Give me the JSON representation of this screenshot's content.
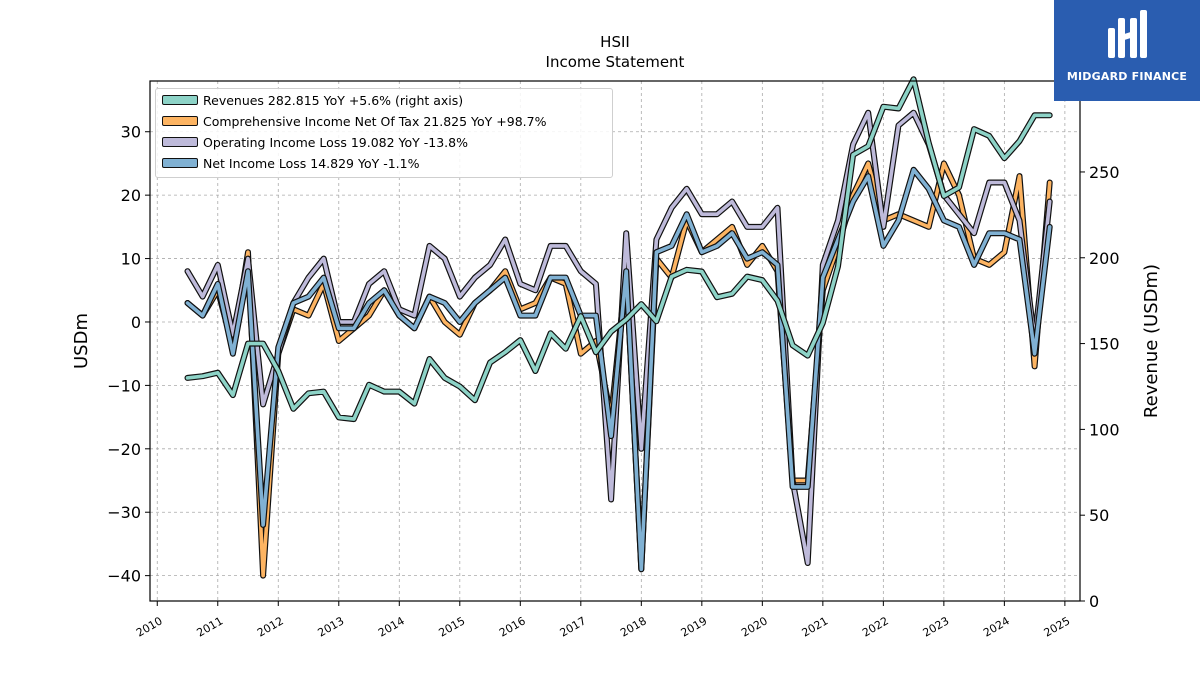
{
  "header": {
    "ticker": "HSII",
    "subtitle": "Income Statement"
  },
  "logo": {
    "text": "MIDGARD FINANCE",
    "color": "#2a5db0"
  },
  "chart_data": {
    "type": "line",
    "title": "HSII",
    "subtitle": "Income Statement",
    "ylabel_left": "USDm",
    "ylabel_right": "Revenue (USDm)",
    "ylim_left": [
      -44,
      38
    ],
    "ylim_right": [
      0,
      303
    ],
    "left_ticks": [
      "−40",
      "−30",
      "−20",
      "−10",
      "0",
      "10",
      "20",
      "30"
    ],
    "right_ticks": [
      "0",
      "50",
      "100",
      "150",
      "200",
      "250",
      "300"
    ],
    "x_ticks": [
      "2010",
      "2011",
      "2012",
      "2013",
      "2014",
      "2015",
      "2016",
      "2017",
      "2018",
      "2019",
      "2020",
      "2021",
      "2022",
      "2023",
      "2024",
      "2025"
    ],
    "grid": true,
    "legend_position": "top-left",
    "legend": [
      "Revenues  282.815 YoY +5.6% (right axis)",
      "Comprehensive Income Net Of Tax  21.825 YoY +98.7%",
      "Operating Income Loss  19.082 YoY -13.8%",
      "Net Income Loss  14.829 YoY -1.1%"
    ],
    "x": [
      2010.5,
      2010.75,
      2011.0,
      2011.25,
      2011.5,
      2011.75,
      2012.0,
      2012.25,
      2012.5,
      2012.75,
      2013.0,
      2013.25,
      2013.5,
      2013.75,
      2014.0,
      2014.25,
      2014.5,
      2014.75,
      2015.0,
      2015.25,
      2015.5,
      2015.75,
      2016.0,
      2016.25,
      2016.5,
      2016.75,
      2017.0,
      2017.25,
      2017.5,
      2017.75,
      2018.0,
      2018.25,
      2018.5,
      2018.75,
      2019.0,
      2019.25,
      2019.5,
      2019.75,
      2020.0,
      2020.25,
      2020.5,
      2020.75,
      2021.0,
      2021.25,
      2021.5,
      2021.75,
      2022.0,
      2022.25,
      2022.5,
      2022.75,
      2023.0,
      2023.25,
      2023.5,
      2023.75,
      2024.0,
      2024.25,
      2024.5,
      2024.75
    ],
    "series": [
      {
        "name": "Revenues",
        "axis": "right",
        "color": "#8dd3c7",
        "values": [
          130,
          131,
          133,
          120,
          150,
          150,
          134,
          112,
          121,
          122,
          107,
          106,
          126,
          122,
          122,
          115,
          141,
          130,
          125,
          117,
          139,
          145,
          152,
          134,
          156,
          147,
          166,
          145,
          157,
          164,
          173,
          163,
          189,
          193,
          192,
          177,
          179,
          189,
          187,
          175,
          149,
          143,
          162,
          195,
          260,
          265,
          288,
          287,
          304,
          267,
          236,
          241,
          275,
          271,
          258,
          268,
          283,
          283
        ]
      },
      {
        "name": "Comprehensive Income Net Of Tax",
        "axis": "left",
        "color": "#fdb462",
        "values": [
          3,
          1,
          5,
          -4,
          11,
          -40,
          -5,
          2,
          1,
          6,
          -3,
          -1,
          1,
          5,
          1,
          -1,
          4,
          0,
          -2,
          3,
          5,
          8,
          2,
          3,
          7,
          6,
          -5,
          -3,
          -15,
          8,
          -39,
          10,
          7,
          16,
          11,
          13,
          15,
          9,
          12,
          8,
          -25,
          -25,
          5,
          12,
          20,
          25,
          16,
          17,
          16,
          15,
          25,
          20,
          10,
          9,
          11,
          23,
          -7,
          22
        ]
      },
      {
        "name": "Operating Income Loss",
        "axis": "left",
        "color": "#bebada",
        "values": [
          8,
          4,
          9,
          -2,
          10,
          -13,
          -5,
          3,
          7,
          10,
          0,
          0,
          6,
          8,
          2,
          1,
          12,
          10,
          4,
          7,
          9,
          13,
          6,
          5,
          12,
          12,
          8,
          6,
          -28,
          14,
          -20,
          13,
          18,
          21,
          17,
          17,
          19,
          15,
          15,
          18,
          -25,
          -38,
          9,
          16,
          28,
          33,
          15,
          31,
          33,
          28,
          20,
          17,
          14,
          22,
          22,
          16,
          -3,
          19
        ]
      },
      {
        "name": "Net Income Loss",
        "axis": "left",
        "color": "#80b1d3",
        "values": [
          3,
          1,
          6,
          -5,
          8,
          -32,
          -4,
          3,
          4,
          7,
          -1,
          -1,
          3,
          5,
          1,
          -1,
          4,
          3,
          0,
          3,
          5,
          7,
          1,
          1,
          7,
          7,
          1,
          1,
          -18,
          8,
          -39,
          11,
          12,
          17,
          11,
          12,
          14,
          10,
          11,
          9,
          -26,
          -26,
          7,
          13,
          19,
          23,
          12,
          16,
          24,
          21,
          16,
          15,
          9,
          14,
          14,
          13,
          -5,
          15
        ]
      }
    ]
  }
}
